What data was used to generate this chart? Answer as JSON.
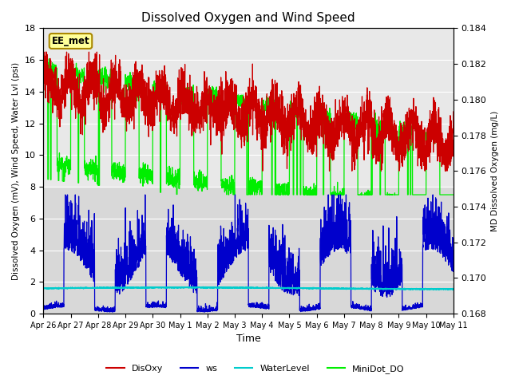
{
  "title": "Dissolved Oxygen and Wind Speed",
  "xlabel": "Time",
  "ylabel_left": "Dissolved Oxygen (mV), Wind Speed, Water Lvl (psi)",
  "ylabel_right": "MD Dissolved Oxygen (mg/L)",
  "annotation": "EE_met",
  "ylim_left": [
    0,
    18
  ],
  "ylim_right": [
    0.168,
    0.184
  ],
  "yticks_left": [
    0,
    2,
    4,
    6,
    8,
    10,
    12,
    14,
    16,
    18
  ],
  "yticks_right": [
    0.168,
    0.17,
    0.172,
    0.174,
    0.176,
    0.178,
    0.18,
    0.182,
    0.184
  ],
  "xtick_labels": [
    "Apr 26",
    "Apr 27",
    "Apr 28",
    "Apr 29",
    "Apr 30",
    "May 1",
    "May 2",
    "May 3",
    "May 4",
    "May 5",
    "May 6",
    "May 7",
    "May 8",
    "May 9",
    "May 10",
    "May 11"
  ],
  "colors": {
    "DisOxy": "#cc0000",
    "ws": "#0000cc",
    "WaterLevel": "#00cccc",
    "MiniDot_DO": "#00ee00"
  },
  "background_color": "#ffffff",
  "band_upper_color": "#e8e8e8",
  "band_lower_color": "#d8d8d8",
  "band_split": 8,
  "n_days": 15,
  "n_points": 3000
}
